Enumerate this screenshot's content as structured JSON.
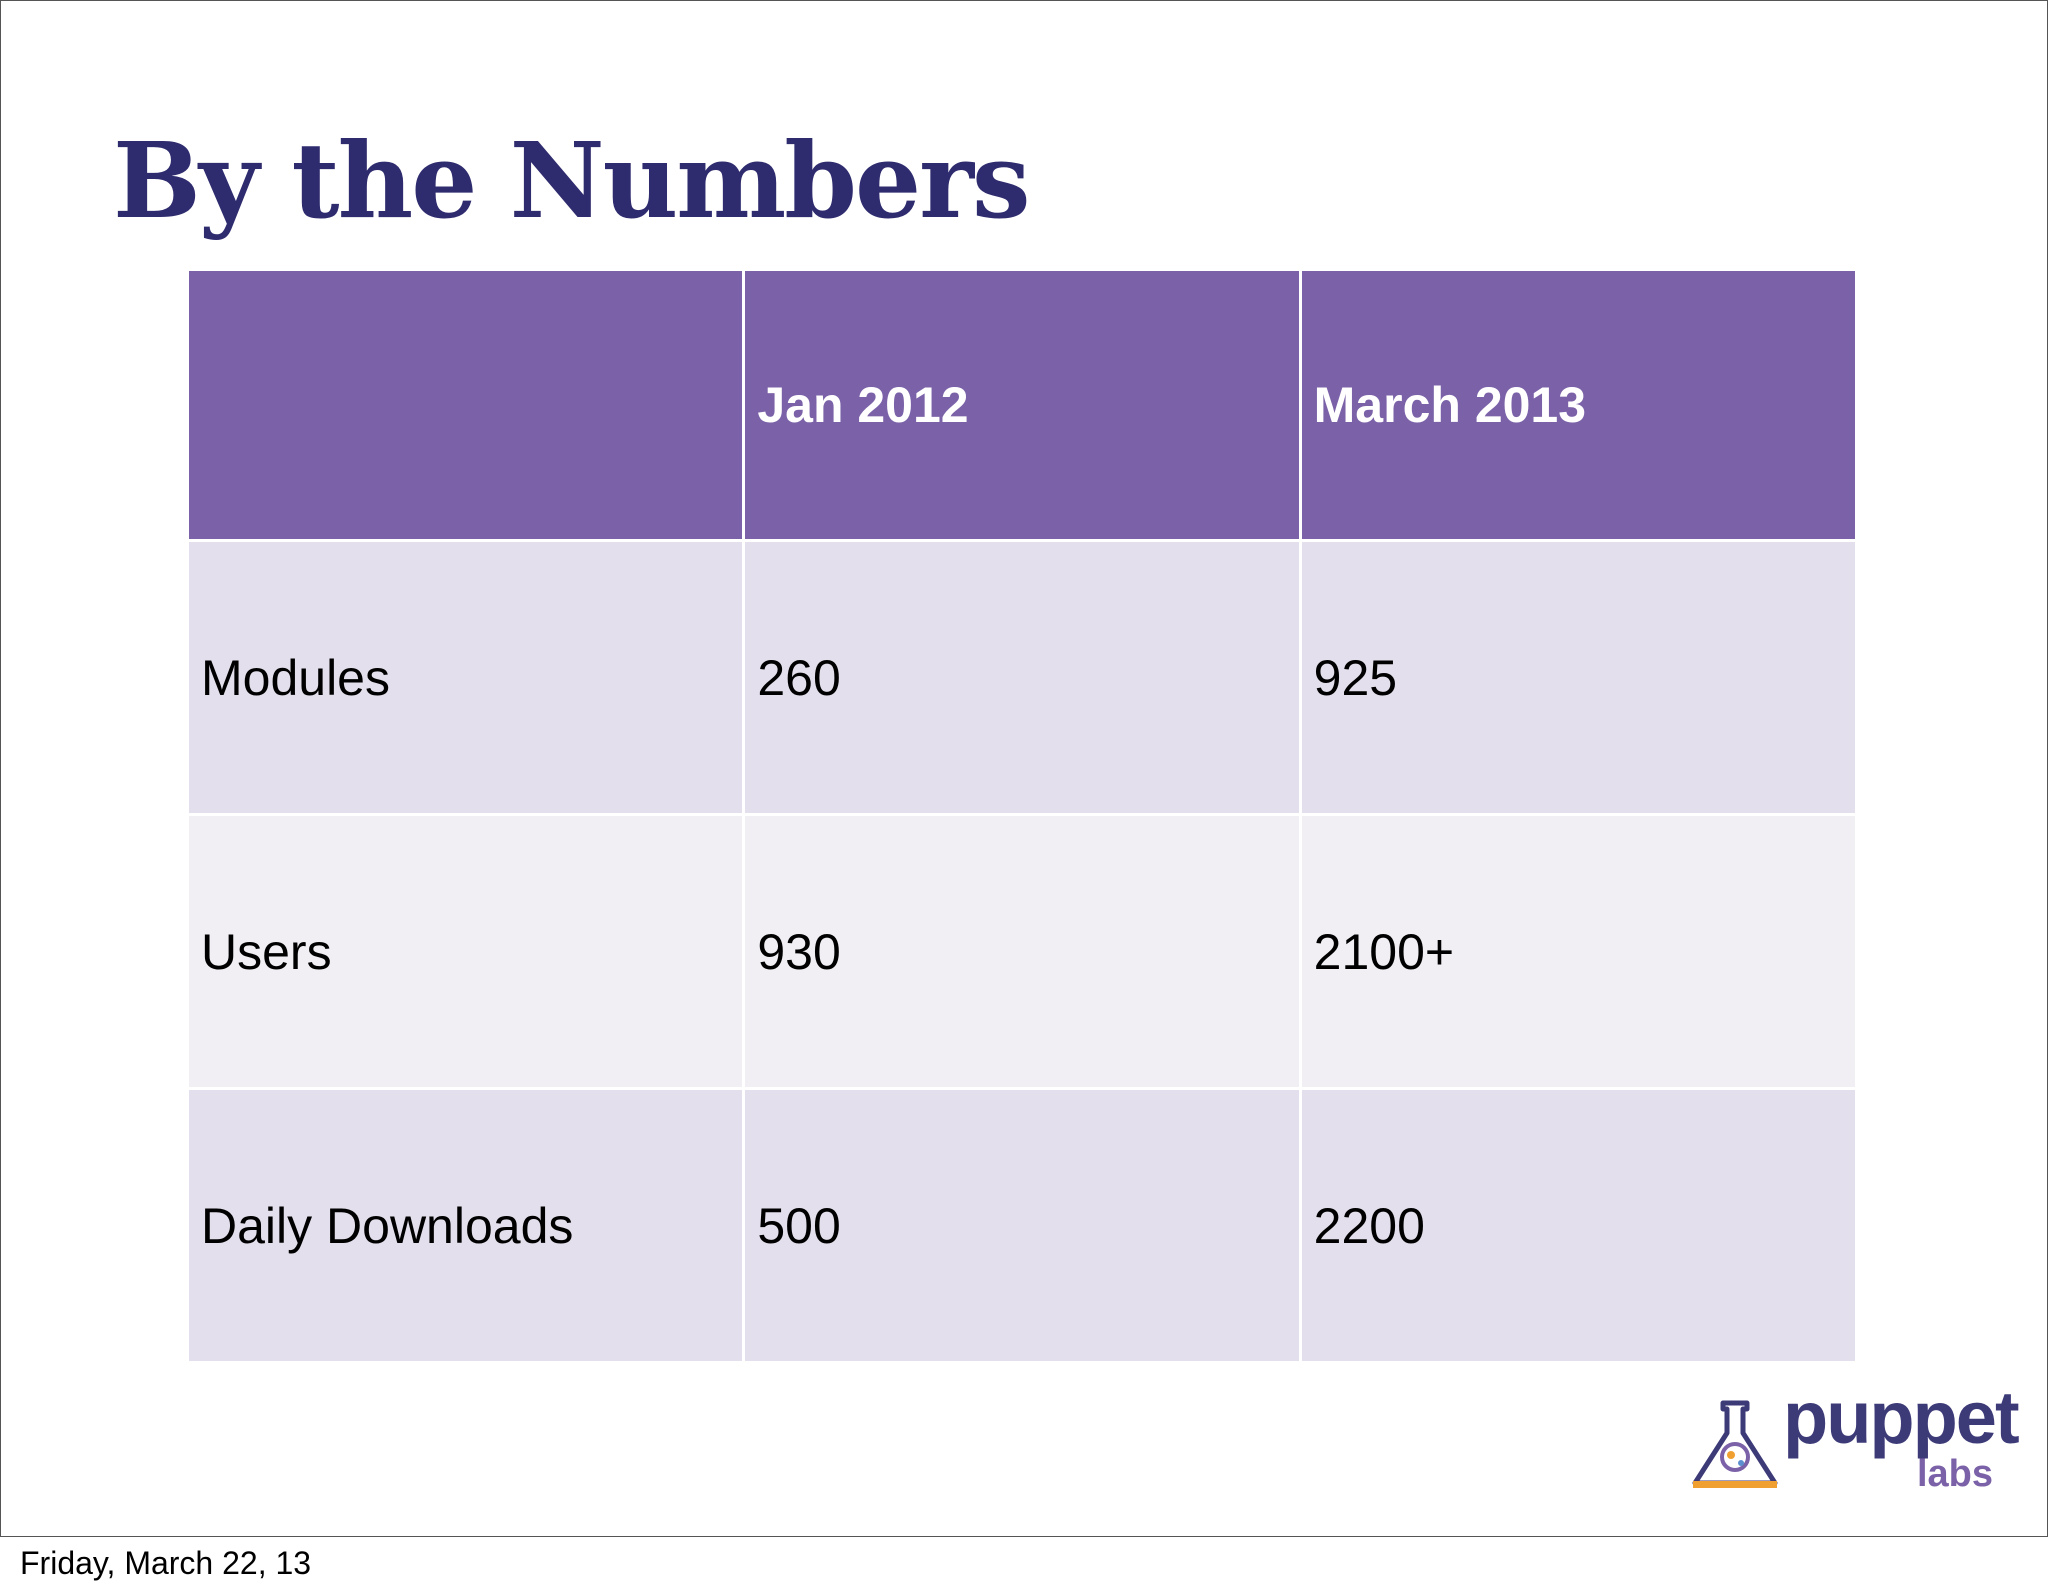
{
  "slide": {
    "title": "By the Numbers",
    "table": {
      "headers": [
        "",
        "Jan 2012",
        "March 2013"
      ],
      "rows": [
        [
          "Modules",
          "260",
          "925"
        ],
        [
          "Users",
          "930",
          "2100+"
        ],
        [
          "Daily Downloads",
          "500",
          "2200"
        ]
      ]
    },
    "logo": {
      "text": "puppet",
      "subtext": "labs"
    }
  },
  "footer": {
    "date": "Friday, March 22, 13"
  },
  "colors": {
    "title": "#2e2b6e",
    "header_fill": "#7b62a8",
    "row_fill_dark": "#e4dfec",
    "row_fill_light": "#f1eff4"
  }
}
